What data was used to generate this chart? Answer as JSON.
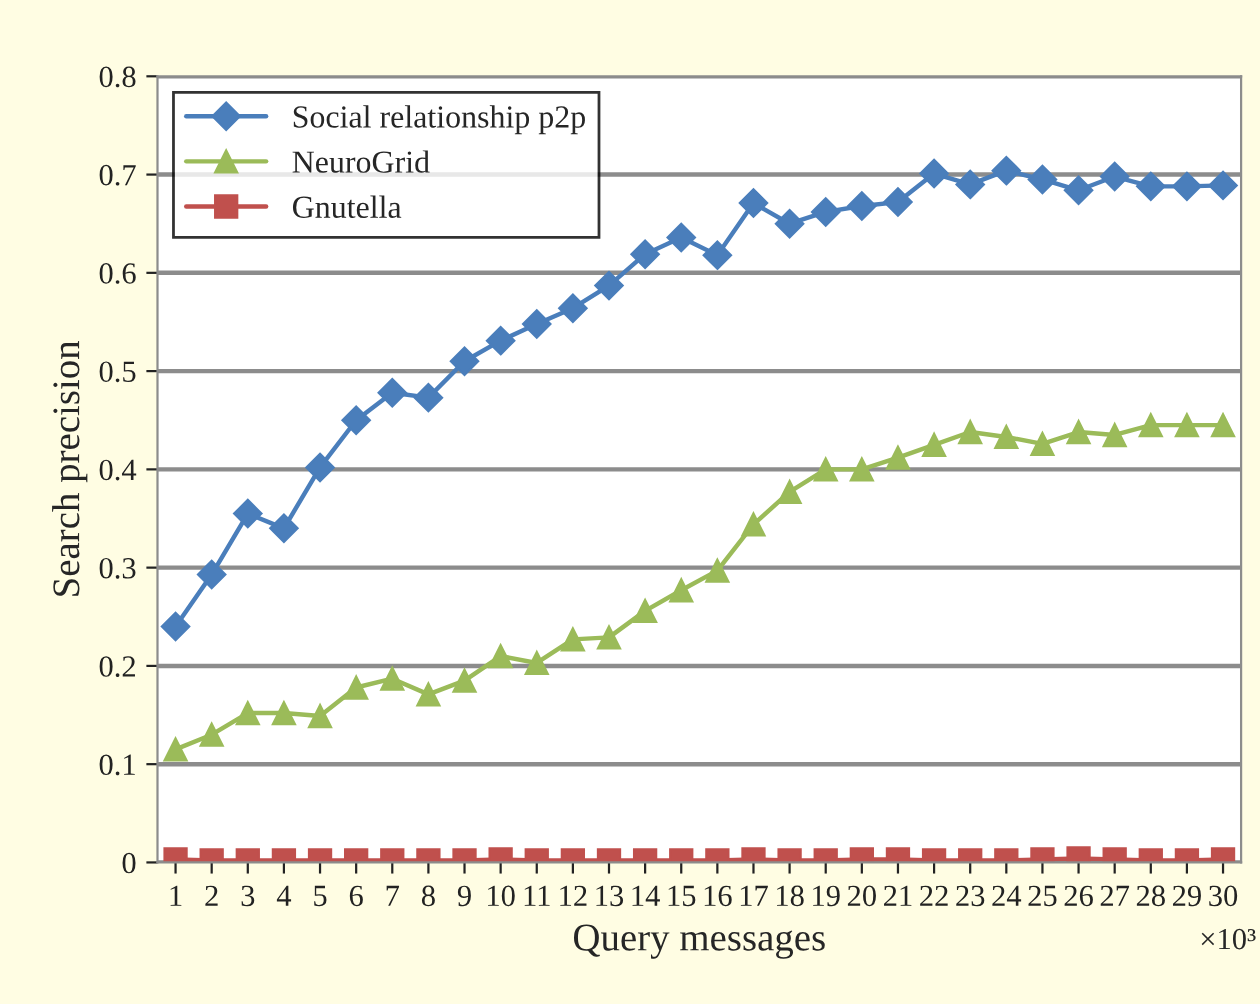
{
  "chart_data": {
    "type": "line",
    "xlabel": "Query messages",
    "ylabel": "Search precision",
    "annotations": [
      "×10³"
    ],
    "categories": [
      "1",
      "2",
      "3",
      "4",
      "5",
      "6",
      "7",
      "8",
      "9",
      "10",
      "11",
      "12",
      "13",
      "14",
      "15",
      "16",
      "17",
      "18",
      "19",
      "20",
      "21",
      "22",
      "23",
      "24",
      "25",
      "26",
      "27",
      "28",
      "29",
      "30"
    ],
    "series": [
      {
        "name": "Social relationship p2p",
        "color": "#4a7ebb",
        "marker": "diamond",
        "values": [
          0.24,
          0.293,
          0.355,
          0.34,
          0.402,
          0.45,
          0.478,
          0.473,
          0.51,
          0.531,
          0.548,
          0.564,
          0.587,
          0.619,
          0.636,
          0.618,
          0.671,
          0.65,
          0.662,
          0.668,
          0.672,
          0.701,
          0.69,
          0.704,
          0.695,
          0.684,
          0.698,
          0.688,
          0.688,
          0.689
        ]
      },
      {
        "name": "NeuroGrid",
        "color": "#9bbb59",
        "marker": "triangle",
        "values": [
          0.115,
          0.13,
          0.152,
          0.152,
          0.149,
          0.178,
          0.187,
          0.171,
          0.185,
          0.21,
          0.203,
          0.227,
          0.229,
          0.256,
          0.277,
          0.297,
          0.344,
          0.377,
          0.4,
          0.4,
          0.412,
          0.425,
          0.438,
          0.433,
          0.426,
          0.438,
          0.435,
          0.445,
          0.445,
          0.445
        ]
      },
      {
        "name": "Gnutella",
        "color": "#c0504d",
        "marker": "square",
        "values": [
          0.003,
          0.002,
          0.002,
          0.002,
          0.002,
          0.002,
          0.002,
          0.002,
          0.002,
          0.003,
          0.002,
          0.002,
          0.002,
          0.002,
          0.002,
          0.002,
          0.003,
          0.002,
          0.002,
          0.003,
          0.003,
          0.002,
          0.002,
          0.002,
          0.003,
          0.004,
          0.003,
          0.002,
          0.002,
          0.003
        ]
      }
    ],
    "ylim": [
      0,
      0.8
    ],
    "yticks": [
      0,
      0.1,
      0.2,
      0.3,
      0.4,
      0.5,
      0.6,
      0.7,
      0.8
    ],
    "grid": "y",
    "legend": "top left",
    "line_style": "solid"
  }
}
